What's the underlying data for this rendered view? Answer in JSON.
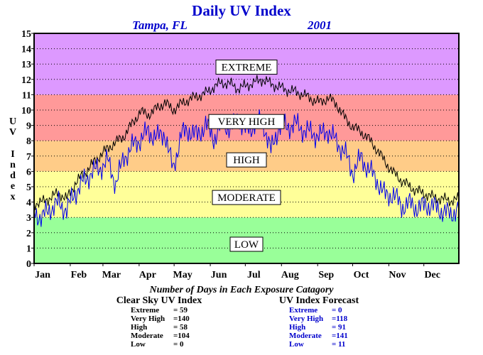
{
  "chart_data": {
    "type": "line",
    "title": "Daily UV Index",
    "location": "Tampa, FL",
    "year": "2001",
    "ylabel": "UV Index",
    "ylim": [
      0,
      15
    ],
    "xlim": [
      1,
      365
    ],
    "yticks": [
      0,
      1,
      2,
      3,
      4,
      5,
      6,
      7,
      8,
      9,
      10,
      11,
      12,
      13,
      14,
      15
    ],
    "xticks": [
      {
        "label": "Jan",
        "day": 1
      },
      {
        "label": "Feb",
        "day": 32
      },
      {
        "label": "Mar",
        "day": 60
      },
      {
        "label": "Apr",
        "day": 91
      },
      {
        "label": "May",
        "day": 121
      },
      {
        "label": "Jun",
        "day": 152
      },
      {
        "label": "Jul",
        "day": 182
      },
      {
        "label": "Aug",
        "day": 213
      },
      {
        "label": "Sep",
        "day": 244
      },
      {
        "label": "Oct",
        "day": 274
      },
      {
        "label": "Nov",
        "day": 305
      },
      {
        "label": "Dec",
        "day": 335
      }
    ],
    "grid": "horizontal dotted",
    "categories_bands": [
      {
        "name": "LOW",
        "from": 0,
        "to": 3,
        "color": "#99ff99"
      },
      {
        "name": "MODERATE",
        "from": 3,
        "to": 6,
        "color": "#ffff99"
      },
      {
        "name": "HIGH",
        "from": 6,
        "to": 8,
        "color": "#ffcc88"
      },
      {
        "name": "VERY HIGH",
        "from": 8,
        "to": 11,
        "color": "#ff9999"
      },
      {
        "name": "EXTREME",
        "from": 11,
        "to": 15,
        "color": "#dd99ff"
      }
    ],
    "band_labels": [
      {
        "text": "EXTREME",
        "y": 12.8
      },
      {
        "text": "VERY HIGH",
        "y": 9.25
      },
      {
        "text": "HIGH",
        "y": 6.75
      },
      {
        "text": "MODERATE",
        "y": 4.3
      },
      {
        "text": "LOW",
        "y": 1.25
      }
    ],
    "series": [
      {
        "name": "Clear Sky UV Index",
        "color": "#000000",
        "x": [
          1,
          8,
          15,
          22,
          29,
          36,
          43,
          50,
          57,
          64,
          71,
          78,
          85,
          92,
          99,
          106,
          113,
          120,
          127,
          134,
          141,
          148,
          155,
          162,
          169,
          176,
          183,
          190,
          197,
          204,
          211,
          218,
          225,
          232,
          239,
          246,
          253,
          260,
          267,
          274,
          281,
          288,
          295,
          302,
          309,
          316,
          323,
          330,
          337,
          344,
          351,
          358,
          365
        ],
        "y": [
          3.9,
          4.0,
          4.3,
          4.6,
          4.2,
          5.2,
          5.8,
          6.4,
          7.0,
          7.5,
          7.9,
          8.3,
          9.1,
          9.9,
          9.7,
          10.1,
          10.5,
          10.0,
          10.4,
          10.7,
          10.9,
          11.1,
          11.5,
          11.8,
          11.7,
          11.4,
          11.6,
          11.8,
          12.0,
          11.7,
          11.5,
          11.3,
          11.2,
          11.0,
          10.7,
          10.5,
          10.8,
          10.4,
          9.5,
          8.9,
          8.6,
          8.1,
          7.4,
          6.6,
          5.9,
          5.4,
          5.0,
          4.7,
          4.5,
          4.3,
          4.2,
          4.1,
          4.2
        ]
      },
      {
        "name": "UV Index Forecast",
        "color": "#0000ee",
        "x": [
          1,
          8,
          15,
          22,
          29,
          36,
          43,
          50,
          57,
          64,
          71,
          78,
          85,
          92,
          99,
          106,
          113,
          120,
          127,
          134,
          141,
          148,
          155,
          162,
          169,
          176,
          183,
          190,
          197,
          204,
          211,
          218,
          225,
          232,
          239,
          246,
          253,
          260,
          267,
          274,
          281,
          288,
          295,
          302,
          309,
          316,
          323,
          330,
          337,
          344,
          351,
          358,
          365
        ],
        "y": [
          3.3,
          3.0,
          3.6,
          3.9,
          3.5,
          4.6,
          5.3,
          5.9,
          6.2,
          6.7,
          5.2,
          6.9,
          7.6,
          8.1,
          8.6,
          8.2,
          8.5,
          6.1,
          8.4,
          8.7,
          8.3,
          9.1,
          8.1,
          9.2,
          8.8,
          9.4,
          8.6,
          9.1,
          9.3,
          7.3,
          9.0,
          8.9,
          9.1,
          8.7,
          8.5,
          8.3,
          8.7,
          7.9,
          7.3,
          5.9,
          6.9,
          6.1,
          5.4,
          4.4,
          4.5,
          3.7,
          3.9,
          3.6,
          3.8,
          3.7,
          3.4,
          3.2,
          3.6
        ]
      }
    ],
    "summary": {
      "title": "Number of Days in Each Exposure Catagory",
      "clear_sky": {
        "heading": "Clear Sky UV Index",
        "color": "#000000",
        "rows": [
          {
            "label": "Extreme",
            "value": "= 59"
          },
          {
            "label": "Very High",
            "value": "=140"
          },
          {
            "label": "High",
            "value": "= 58"
          },
          {
            "label": "Moderate",
            "value": "=104"
          },
          {
            "label": "Low",
            "value": "=   0"
          }
        ]
      },
      "forecast": {
        "heading": "UV Index Forecast",
        "color": "#0000cc",
        "rows": [
          {
            "label": "Extreme",
            "value": "=   0"
          },
          {
            "label": "Very High",
            "value": "=118"
          },
          {
            "label": "High",
            "value": "= 91"
          },
          {
            "label": "Moderate",
            "value": "=141"
          },
          {
            "label": "Low",
            "value": "= 11"
          }
        ]
      }
    }
  }
}
